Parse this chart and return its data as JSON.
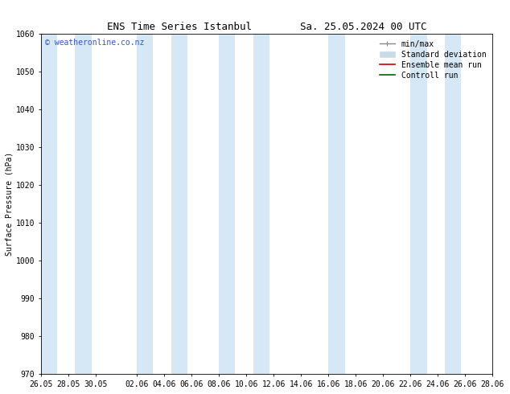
{
  "title_left": "ENS Time Series Istanbul",
  "title_right": "Sa. 25.05.2024 00 UTC",
  "ylabel": "Surface Pressure (hPa)",
  "ylim": [
    970,
    1060
  ],
  "yticks": [
    970,
    980,
    990,
    1000,
    1010,
    1020,
    1030,
    1040,
    1050,
    1060
  ],
  "x_start_num": 0,
  "x_end_num": 33,
  "xtick_labels": [
    "26.05",
    "28.05",
    "30.05",
    "02.06",
    "04.06",
    "06.06",
    "08.06",
    "10.06",
    "12.06",
    "14.06",
    "16.06",
    "18.06",
    "20.06",
    "22.06",
    "24.06",
    "26.06",
    "28.06"
  ],
  "xtick_positions": [
    0,
    2,
    4,
    7,
    9,
    11,
    13,
    15,
    17,
    19,
    21,
    23,
    25,
    27,
    29,
    31,
    33
  ],
  "bg_color": "#ffffff",
  "plot_bg_color": "#ffffff",
  "band_color": "#d6e8f5",
  "band_specs": [
    {
      "start": 0.0,
      "end": 1.2
    },
    {
      "start": 2.5,
      "end": 3.7
    },
    {
      "start": 7.0,
      "end": 8.2
    },
    {
      "start": 9.5,
      "end": 10.7
    },
    {
      "start": 13.0,
      "end": 14.2
    },
    {
      "start": 15.5,
      "end": 16.7
    },
    {
      "start": 21.0,
      "end": 22.2
    },
    {
      "start": 27.0,
      "end": 28.2
    },
    {
      "start": 29.5,
      "end": 30.7
    }
  ],
  "watermark": "© weatheronline.co.nz",
  "watermark_color": "#3355cc",
  "legend_items": [
    {
      "label": "min/max",
      "color": "#888888"
    },
    {
      "label": "Standard deviation",
      "color": "#c8dce8"
    },
    {
      "label": "Ensemble mean run",
      "color": "#cc0000"
    },
    {
      "label": "Controll run",
      "color": "#006600"
    }
  ],
  "tick_color": "#000000",
  "spine_color": "#000000",
  "font_color": "#000000",
  "title_fontsize": 9,
  "label_fontsize": 7,
  "tick_fontsize": 7,
  "watermark_fontsize": 7,
  "legend_fontsize": 7
}
